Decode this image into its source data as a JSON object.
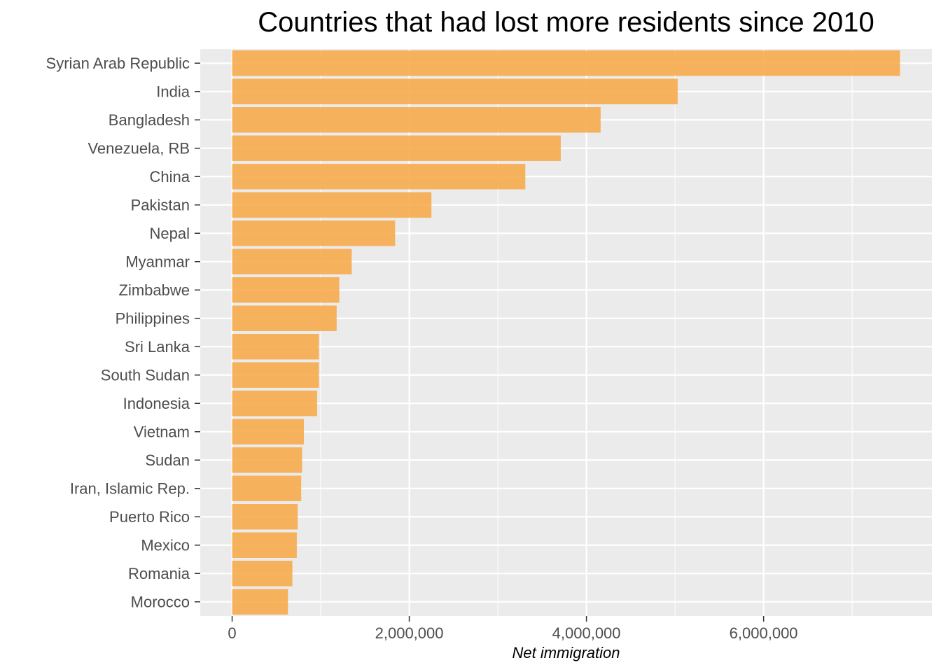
{
  "chart_data": {
    "type": "bar",
    "orientation": "horizontal",
    "title": "Countries that had lost more residents since 2010",
    "xlabel": "Net immigration",
    "ylabel": "",
    "categories": [
      "Syrian Arab Republic",
      "India",
      "Bangladesh",
      "Venezuela, RB",
      "China",
      "Pakistan",
      "Nepal",
      "Myanmar",
      "Zimbabwe",
      "Philippines",
      "Sri Lanka",
      "South Sudan",
      "Indonesia",
      "Vietnam",
      "Sudan",
      "Iran, Islamic Rep.",
      "Puerto Rico",
      "Mexico",
      "Romania",
      "Morocco"
    ],
    "values": [
      7540000,
      5030000,
      4160000,
      3710000,
      3310000,
      2250000,
      1840000,
      1350000,
      1210000,
      1180000,
      980000,
      980000,
      960000,
      810000,
      790000,
      780000,
      740000,
      730000,
      680000,
      630000
    ],
    "xlim": [
      -360000,
      7900000
    ],
    "x_ticks": [
      0,
      2000000,
      4000000,
      6000000
    ],
    "x_tick_labels": [
      "0",
      "2,000,000",
      "4,000,000",
      "6,000,000"
    ],
    "grid": true,
    "colors": {
      "bar": "#F7AB4E",
      "panel_background": "#EBEBEB",
      "grid_major": "#FFFFFF",
      "tick_text": "#4D4D4D"
    }
  }
}
